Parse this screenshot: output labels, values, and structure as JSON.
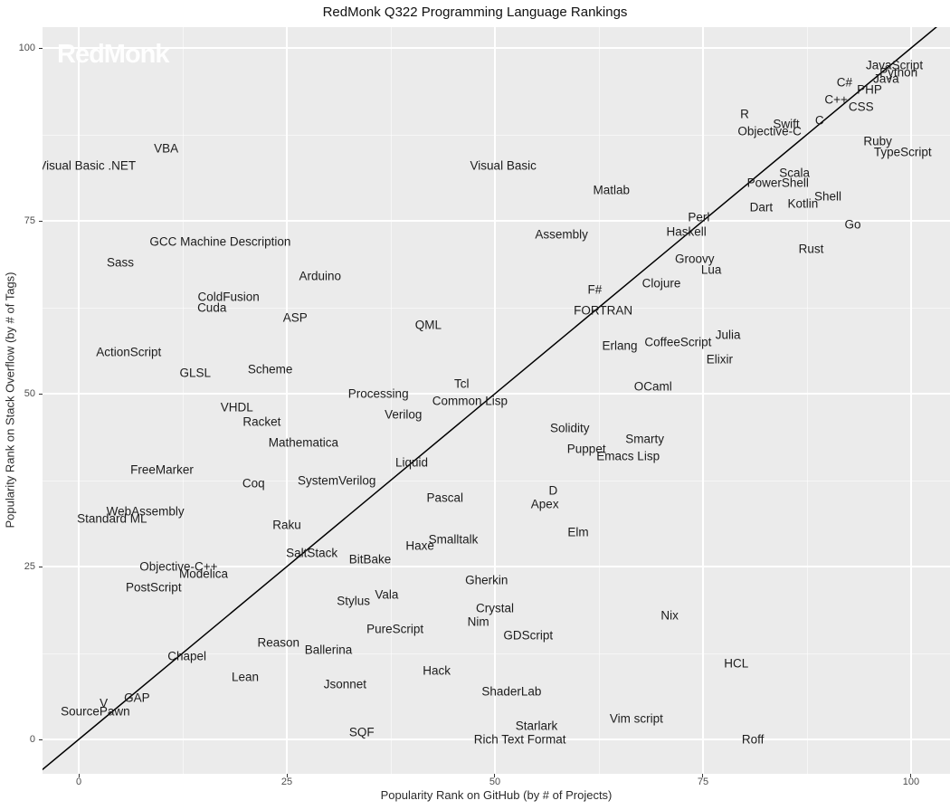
{
  "title": "RedMonk Q322 Programming Language Rankings",
  "watermark": "RedMonk",
  "axes": {
    "x_label": "Popularity Rank on GitHub (by # of Projects)",
    "y_label": "Popularity Rank on Stack Overflow (by # of Tags)"
  },
  "colors": {
    "panel_bg": "#EBEBEB",
    "grid": "#FFFFFF",
    "label_text": "#1C1C1C",
    "tick_text": "#4D4D4D",
    "line": "#000000",
    "watermark": "#FFFFFF"
  },
  "chart_data": {
    "type": "scatter",
    "title": "RedMonk Q322 Programming Language Rankings",
    "xlabel": "Popularity Rank on GitHub (by # of Projects)",
    "ylabel": "Popularity Rank on Stack Overflow (by # of Tags)",
    "xlim": [
      -4.4,
      104.7
    ],
    "ylim": [
      -5,
      103
    ],
    "grid": true,
    "legend": "none",
    "x_ticks": [
      0,
      25,
      50,
      75,
      100
    ],
    "y_ticks": [
      0,
      25,
      50,
      75,
      100
    ],
    "x_minor_ticks": [
      12.5,
      37.5,
      62.5,
      87.5
    ],
    "y_minor_ticks": [
      12.5,
      37.5,
      62.5,
      87.5
    ],
    "reference_line": {
      "type": "identity",
      "from": [
        -5,
        -5
      ],
      "to": [
        103.5,
        103.5
      ]
    },
    "points": [
      {
        "label": "JavaScript",
        "x": 98,
        "y": 97.5
      },
      {
        "label": "Python",
        "x": 98.5,
        "y": 96.5
      },
      {
        "label": "Java",
        "x": 97,
        "y": 95.5
      },
      {
        "label": "C#",
        "x": 92,
        "y": 95
      },
      {
        "label": "PHP",
        "x": 95,
        "y": 94
      },
      {
        "label": "C++",
        "x": 91,
        "y": 92.5
      },
      {
        "label": "CSS",
        "x": 94,
        "y": 91.5
      },
      {
        "label": "C",
        "x": 89,
        "y": 89.5
      },
      {
        "label": "Swift",
        "x": 85,
        "y": 89
      },
      {
        "label": "Objective-C",
        "x": 83,
        "y": 88
      },
      {
        "label": "R",
        "x": 80,
        "y": 90.5
      },
      {
        "label": "Ruby",
        "x": 96,
        "y": 86.5
      },
      {
        "label": "TypeScript",
        "x": 99,
        "y": 85
      },
      {
        "label": "Scala",
        "x": 86,
        "y": 82
      },
      {
        "label": "PowerShell",
        "x": 84,
        "y": 80.5
      },
      {
        "label": "Shell",
        "x": 90,
        "y": 78.5
      },
      {
        "label": "Kotlin",
        "x": 87,
        "y": 77.5
      },
      {
        "label": "Dart",
        "x": 82,
        "y": 77
      },
      {
        "label": "Perl",
        "x": 74.5,
        "y": 75.5
      },
      {
        "label": "Haskell",
        "x": 73,
        "y": 73.5
      },
      {
        "label": "Go",
        "x": 93,
        "y": 74.5
      },
      {
        "label": "Rust",
        "x": 88,
        "y": 71
      },
      {
        "label": "Groovy",
        "x": 74,
        "y": 69.5
      },
      {
        "label": "Lua",
        "x": 76,
        "y": 68
      },
      {
        "label": "Clojure",
        "x": 70,
        "y": 66
      },
      {
        "label": "VBA",
        "x": 10.5,
        "y": 85.5
      },
      {
        "label": "Visual Basic .NET",
        "x": 1,
        "y": 83
      },
      {
        "label": "Visual Basic",
        "x": 51,
        "y": 83
      },
      {
        "label": "Matlab",
        "x": 64,
        "y": 79.5
      },
      {
        "label": "GCC Machine Description",
        "x": 17,
        "y": 72
      },
      {
        "label": "Sass",
        "x": 5,
        "y": 69
      },
      {
        "label": "Arduino",
        "x": 29,
        "y": 67
      },
      {
        "label": "Assembly",
        "x": 58,
        "y": 73
      },
      {
        "label": "ColdFusion",
        "x": 18,
        "y": 64
      },
      {
        "label": "Cuda",
        "x": 16,
        "y": 62.5
      },
      {
        "label": "ASP",
        "x": 26,
        "y": 61
      },
      {
        "label": "QML",
        "x": 42,
        "y": 60
      },
      {
        "label": "F#",
        "x": 62,
        "y": 65
      },
      {
        "label": "FORTRAN",
        "x": 63,
        "y": 62
      },
      {
        "label": "Erlang",
        "x": 65,
        "y": 57
      },
      {
        "label": "CoffeeScript",
        "x": 72,
        "y": 57.5
      },
      {
        "label": "Julia",
        "x": 78,
        "y": 58.5
      },
      {
        "label": "Elixir",
        "x": 77,
        "y": 55
      },
      {
        "label": "ActionScript",
        "x": 6,
        "y": 56
      },
      {
        "label": "GLSL",
        "x": 14,
        "y": 53
      },
      {
        "label": "Scheme",
        "x": 23,
        "y": 53.5
      },
      {
        "label": "Tcl",
        "x": 46,
        "y": 51.5
      },
      {
        "label": "Common Lisp",
        "x": 47,
        "y": 49
      },
      {
        "label": "Processing",
        "x": 36,
        "y": 50
      },
      {
        "label": "Verilog",
        "x": 39,
        "y": 47
      },
      {
        "label": "VHDL",
        "x": 19,
        "y": 48
      },
      {
        "label": "Racket",
        "x": 22,
        "y": 46
      },
      {
        "label": "OCaml",
        "x": 69,
        "y": 51
      },
      {
        "label": "Mathematica",
        "x": 27,
        "y": 43
      },
      {
        "label": "Solidity",
        "x": 59,
        "y": 45
      },
      {
        "label": "Smarty",
        "x": 68,
        "y": 43.5
      },
      {
        "label": "Puppet",
        "x": 61,
        "y": 42
      },
      {
        "label": "Emacs Lisp",
        "x": 66,
        "y": 41
      },
      {
        "label": "Liquid",
        "x": 40,
        "y": 40
      },
      {
        "label": "FreeMarker",
        "x": 10,
        "y": 39
      },
      {
        "label": "SystemVerilog",
        "x": 31,
        "y": 37.5
      },
      {
        "label": "Coq",
        "x": 21,
        "y": 37
      },
      {
        "label": "Pascal",
        "x": 44,
        "y": 35
      },
      {
        "label": "D",
        "x": 57,
        "y": 36
      },
      {
        "label": "Apex",
        "x": 56,
        "y": 34
      },
      {
        "label": "WebAssembly",
        "x": 8,
        "y": 33
      },
      {
        "label": "Standard ML",
        "x": 4,
        "y": 32
      },
      {
        "label": "Raku",
        "x": 25,
        "y": 31
      },
      {
        "label": "Elm",
        "x": 60,
        "y": 30
      },
      {
        "label": "Smalltalk",
        "x": 45,
        "y": 29
      },
      {
        "label": "Haxe",
        "x": 41,
        "y": 28
      },
      {
        "label": "SaltStack",
        "x": 28,
        "y": 27
      },
      {
        "label": "BitBake",
        "x": 35,
        "y": 26
      },
      {
        "label": "Objective-C++",
        "x": 12,
        "y": 25
      },
      {
        "label": "Modelica",
        "x": 15,
        "y": 24
      },
      {
        "label": "PostScript",
        "x": 9,
        "y": 22
      },
      {
        "label": "Gherkin",
        "x": 49,
        "y": 23
      },
      {
        "label": "Vala",
        "x": 37,
        "y": 21
      },
      {
        "label": "Stylus",
        "x": 33,
        "y": 20
      },
      {
        "label": "Crystal",
        "x": 50,
        "y": 19
      },
      {
        "label": "Nim",
        "x": 48,
        "y": 17
      },
      {
        "label": "PureScript",
        "x": 38,
        "y": 16
      },
      {
        "label": "GDScript",
        "x": 54,
        "y": 15
      },
      {
        "label": "Reason",
        "x": 24,
        "y": 14
      },
      {
        "label": "Ballerina",
        "x": 30,
        "y": 13
      },
      {
        "label": "Nix",
        "x": 71,
        "y": 18
      },
      {
        "label": "Chapel",
        "x": 13,
        "y": 12
      },
      {
        "label": "Lean",
        "x": 20,
        "y": 9
      },
      {
        "label": "Jsonnet",
        "x": 32,
        "y": 8
      },
      {
        "label": "Hack",
        "x": 43,
        "y": 10
      },
      {
        "label": "HCL",
        "x": 79,
        "y": 11
      },
      {
        "label": "ShaderLab",
        "x": 52,
        "y": 7
      },
      {
        "label": "GAP",
        "x": 7,
        "y": 6
      },
      {
        "label": "V",
        "x": 3,
        "y": 5.2
      },
      {
        "label": "SourcePawn",
        "x": 2,
        "y": 4
      },
      {
        "label": "SQF",
        "x": 34,
        "y": 1
      },
      {
        "label": "Starlark",
        "x": 55,
        "y": 2
      },
      {
        "label": "Rich Text Format",
        "x": 53,
        "y": 0
      },
      {
        "label": "Vim script",
        "x": 67,
        "y": 3
      },
      {
        "label": "Roff",
        "x": 81,
        "y": 0
      }
    ]
  }
}
